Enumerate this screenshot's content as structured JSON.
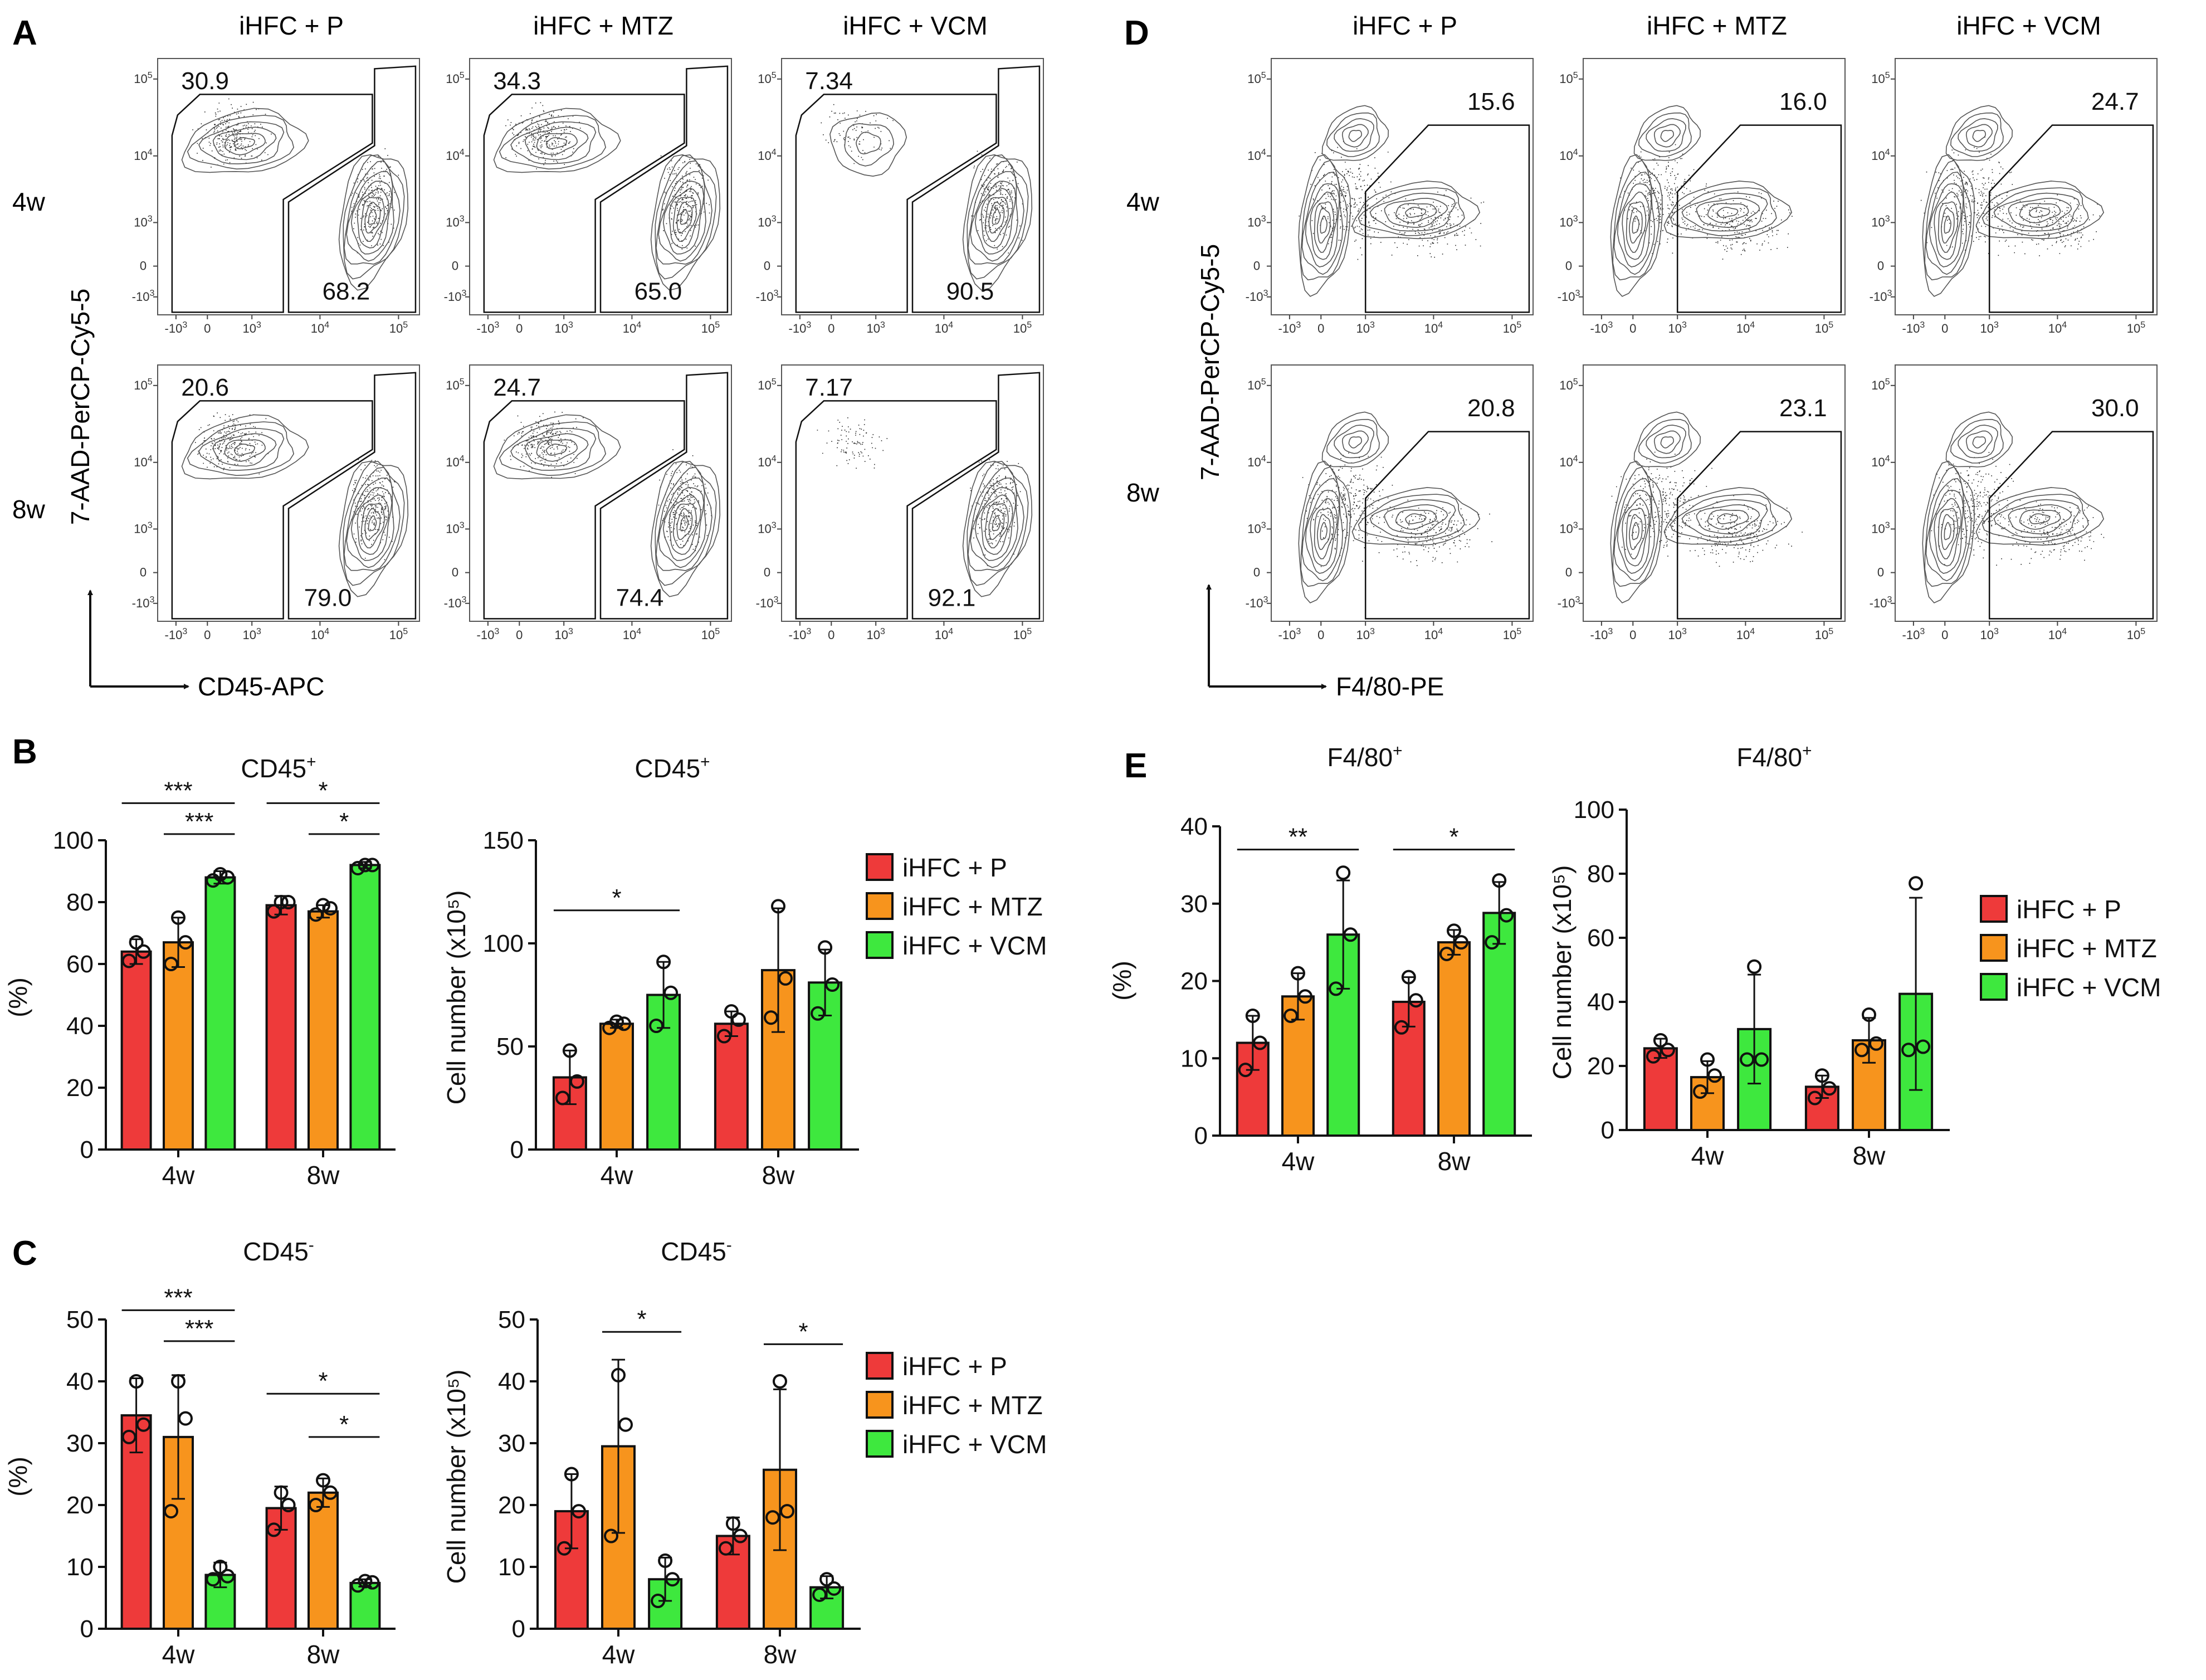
{
  "panel_letters": {
    "A": "A",
    "B": "B",
    "C": "C",
    "D": "D",
    "E": "E"
  },
  "colors": {
    "P": "#ee3a3a",
    "MTZ": "#f7941d",
    "VCM": "#3ee83e",
    "ink": "#111111",
    "contour": "#444444"
  },
  "legend": [
    "iHFC + P",
    "iHFC + MTZ",
    "iHFC + VCM"
  ],
  "flow": {
    "groups": [
      "iHFC + P",
      "iHFC + MTZ",
      "iHFC + VCM"
    ],
    "rows": [
      "4w",
      "8w"
    ],
    "axis_ticks": [
      "-10^3",
      "0",
      "10^3",
      "10^4",
      "10^5"
    ],
    "A": {
      "ylabel": "7-AAD-PerCP-Cy5-5",
      "xlabel": "CD45-APC",
      "top_values": [
        [
          "30.9",
          "34.3",
          "7.34"
        ],
        [
          "20.6",
          "24.7",
          "7.17"
        ]
      ],
      "bottom_values": [
        [
          "68.2",
          "65.0",
          "90.5"
        ],
        [
          "79.0",
          "74.4",
          "92.1"
        ]
      ]
    },
    "D": {
      "ylabel": "7-AAD-PerCP-Cy5-5",
      "xlabel": "F4/80-PE",
      "values": [
        [
          "15.6",
          "16.0",
          "24.7"
        ],
        [
          "20.8",
          "23.1",
          "30.0"
        ]
      ]
    }
  },
  "chart_data": [
    {
      "id": "B-pct",
      "type": "bar",
      "title": "CD45+",
      "title_base": "CD45",
      "title_sup": "+",
      "ylabel": "(%)",
      "ylim": [
        0,
        100
      ],
      "yticks": [
        0,
        20,
        40,
        60,
        80,
        100
      ],
      "categories": [
        "4w",
        "8w"
      ],
      "series": [
        {
          "name": "iHFC + P",
          "values": [
            64,
            79
          ],
          "err": [
            4,
            3
          ],
          "points": [
            [
              61,
              64,
              67
            ],
            [
              77,
              80,
              80
            ]
          ]
        },
        {
          "name": "iHFC + MTZ",
          "values": [
            67,
            77
          ],
          "err": [
            8,
            2
          ],
          "points": [
            [
              60,
              67,
              75
            ],
            [
              76,
              78,
              79
            ]
          ]
        },
        {
          "name": "iHFC + VCM",
          "values": [
            88,
            92
          ],
          "err": [
            2,
            1
          ],
          "points": [
            [
              87,
              88,
              89
            ],
            [
              91,
              92,
              92
            ]
          ]
        }
      ],
      "sig": [
        {
          "label": "***",
          "g": 0,
          "a": 0,
          "b": 2,
          "y": 112
        },
        {
          "label": "***",
          "g": 0,
          "a": 1,
          "b": 2,
          "y": 102
        },
        {
          "label": "*",
          "g": 1,
          "a": 0,
          "b": 2,
          "y": 112
        },
        {
          "label": "*",
          "g": 1,
          "a": 1,
          "b": 2,
          "y": 102
        }
      ]
    },
    {
      "id": "B-num",
      "type": "bar",
      "title": "CD45+",
      "title_base": "CD45",
      "title_sup": "+",
      "ylabel": "Cell number (x10⁵)",
      "ylim": [
        0,
        150
      ],
      "yticks": [
        0,
        50,
        100,
        150
      ],
      "categories": [
        "4w",
        "8w"
      ],
      "series": [
        {
          "name": "iHFC + P",
          "values": [
            35,
            61
          ],
          "err": [
            13,
            6
          ],
          "points": [
            [
              25,
              33,
              48
            ],
            [
              55,
              63,
              67
            ]
          ]
        },
        {
          "name": "iHFC + MTZ",
          "values": [
            61,
            87
          ],
          "err": [
            2,
            30
          ],
          "points": [
            [
              59,
              61,
              62
            ],
            [
              64,
              83,
              118
            ]
          ]
        },
        {
          "name": "iHFC + VCM",
          "values": [
            75,
            81
          ],
          "err": [
            16,
            16
          ],
          "points": [
            [
              60,
              76,
              91
            ],
            [
              66,
              80,
              98
            ]
          ]
        }
      ],
      "sig": [
        {
          "label": "*",
          "g": 0,
          "a": 0,
          "b": 2,
          "y": 116
        }
      ]
    },
    {
      "id": "C-pct",
      "type": "bar",
      "title": "CD45-",
      "title_base": "CD45",
      "title_sup": "-",
      "ylabel": "(%)",
      "ylim": [
        0,
        50
      ],
      "yticks": [
        0,
        10,
        20,
        30,
        40,
        50
      ],
      "categories": [
        "4w",
        "8w"
      ],
      "series": [
        {
          "name": "iHFC + P",
          "values": [
            34.5,
            19.5
          ],
          "err": [
            6,
            3.5
          ],
          "points": [
            [
              31,
              33,
              40
            ],
            [
              16,
              20,
              22
            ]
          ]
        },
        {
          "name": "iHFC + MTZ",
          "values": [
            31,
            22
          ],
          "err": [
            10,
            2.3
          ],
          "points": [
            [
              19,
              34,
              40
            ],
            [
              20,
              22,
              24
            ]
          ]
        },
        {
          "name": "iHFC + VCM",
          "values": [
            8.7,
            7.4
          ],
          "err": [
            2,
            0.6
          ],
          "points": [
            [
              8,
              8.5,
              10
            ],
            [
              7,
              7.5,
              7.7
            ]
          ]
        }
      ],
      "sig": [
        {
          "label": "***",
          "g": 0,
          "a": 0,
          "b": 2,
          "y": 51.5
        },
        {
          "label": "***",
          "g": 0,
          "a": 1,
          "b": 2,
          "y": 46.5
        },
        {
          "label": "*",
          "g": 1,
          "a": 0,
          "b": 2,
          "y": 38
        },
        {
          "label": "*",
          "g": 1,
          "a": 1,
          "b": 2,
          "y": 31
        }
      ]
    },
    {
      "id": "C-num",
      "type": "bar",
      "title": "CD45-",
      "title_base": "CD45",
      "title_sup": "-",
      "ylabel": "Cell number (x10⁵)",
      "ylim": [
        0,
        50
      ],
      "yticks": [
        0,
        10,
        20,
        30,
        40,
        50
      ],
      "categories": [
        "4w",
        "8w"
      ],
      "series": [
        {
          "name": "iHFC + P",
          "values": [
            19,
            15
          ],
          "err": [
            6,
            3
          ],
          "points": [
            [
              13,
              19,
              25
            ],
            [
              13,
              15,
              17
            ]
          ]
        },
        {
          "name": "iHFC + MTZ",
          "values": [
            29.5,
            25.7
          ],
          "err": [
            14,
            13
          ],
          "points": [
            [
              15,
              33,
              41
            ],
            [
              18,
              19,
              40
            ]
          ]
        },
        {
          "name": "iHFC + VCM",
          "values": [
            8,
            6.7
          ],
          "err": [
            3.5,
            1.8
          ],
          "points": [
            [
              4.5,
              8,
              11
            ],
            [
              5.5,
              6.5,
              8
            ]
          ]
        }
      ],
      "sig": [
        {
          "label": "*",
          "g": 0,
          "a": 1,
          "b": 2,
          "y": 48
        },
        {
          "label": "*",
          "g": 1,
          "a": 1,
          "b": 2,
          "y": 46
        }
      ]
    },
    {
      "id": "E-pct",
      "type": "bar",
      "title": "F4/80+",
      "title_base": "F4/80",
      "title_sup": "+",
      "ylabel": "(%)",
      "ylim": [
        0,
        40
      ],
      "yticks": [
        0,
        10,
        20,
        30,
        40
      ],
      "categories": [
        "4w",
        "8w"
      ],
      "series": [
        {
          "name": "iHFC + P",
          "values": [
            12,
            17.3
          ],
          "err": [
            3.5,
            3.2
          ],
          "points": [
            [
              8.5,
              12,
              15.5
            ],
            [
              14,
              17.5,
              20.5
            ]
          ]
        },
        {
          "name": "iHFC + MTZ",
          "values": [
            18,
            25
          ],
          "err": [
            3,
            1.6
          ],
          "points": [
            [
              15.5,
              18,
              21
            ],
            [
              23.5,
              25,
              26.5
            ]
          ]
        },
        {
          "name": "iHFC + VCM",
          "values": [
            26,
            28.8
          ],
          "err": [
            7,
            4
          ],
          "points": [
            [
              19,
              26,
              34
            ],
            [
              25,
              28.5,
              33
            ]
          ]
        }
      ],
      "sig": [
        {
          "label": "**",
          "g": 0,
          "a": 0,
          "b": 2,
          "y": 37
        },
        {
          "label": "*",
          "g": 1,
          "a": 0,
          "b": 2,
          "y": 37
        }
      ]
    },
    {
      "id": "E-num",
      "type": "bar",
      "title": "F4/80+",
      "title_base": "F4/80",
      "title_sup": "+",
      "ylabel": "Cell number (x10⁵)",
      "ylim": [
        0,
        100
      ],
      "yticks": [
        0,
        20,
        40,
        60,
        80,
        100
      ],
      "categories": [
        "4w",
        "8w"
      ],
      "series": [
        {
          "name": "iHFC + P",
          "values": [
            25.5,
            13.5
          ],
          "err": [
            3,
            3.5
          ],
          "points": [
            [
              23,
              25,
              28
            ],
            [
              10,
              13,
              17
            ]
          ]
        },
        {
          "name": "iHFC + MTZ",
          "values": [
            16.5,
            28
          ],
          "err": [
            5,
            7
          ],
          "points": [
            [
              12,
              17,
              22
            ],
            [
              25,
              27,
              36
            ]
          ]
        },
        {
          "name": "iHFC + VCM",
          "values": [
            31.5,
            42.5
          ],
          "err": [
            17,
            30
          ],
          "points": [
            [
              22,
              22,
              51
            ],
            [
              25,
              26,
              77
            ]
          ]
        }
      ],
      "sig": []
    }
  ]
}
